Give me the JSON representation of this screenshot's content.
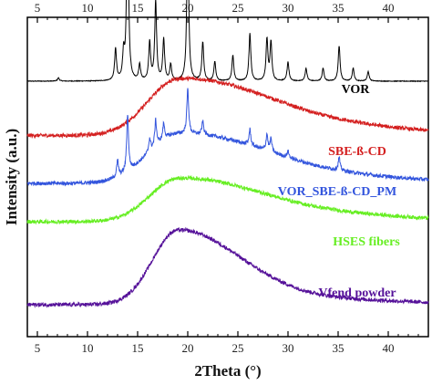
{
  "chart_data": {
    "type": "line",
    "title": "",
    "xlabel": "2Theta (°)",
    "ylabel": "Intensity (a.u.)",
    "xlim": [
      4,
      44
    ],
    "x_ticks": [
      5,
      10,
      15,
      20,
      25,
      30,
      35,
      40
    ],
    "x_ticks_top": [
      5,
      10,
      15,
      20,
      25,
      30,
      35,
      40
    ],
    "y_tick_labels": false,
    "grid": false,
    "legend": "labels placed beside each trace (right side)",
    "series": [
      {
        "name": "VOR",
        "color": "#000000",
        "baseline": 0.8,
        "peaks": [
          [
            7.1,
            0.01
          ],
          [
            12.8,
            0.1
          ],
          [
            13.6,
            0.08
          ],
          [
            14.0,
            0.58
          ],
          [
            15.2,
            0.05
          ],
          [
            16.2,
            0.12
          ],
          [
            16.8,
            0.25
          ],
          [
            17.6,
            0.13
          ],
          [
            18.3,
            0.05
          ],
          [
            20.0,
            0.48
          ],
          [
            21.5,
            0.12
          ],
          [
            22.7,
            0.06
          ],
          [
            24.5,
            0.08
          ],
          [
            26.2,
            0.15
          ],
          [
            27.9,
            0.13
          ],
          [
            28.3,
            0.12
          ],
          [
            30.0,
            0.06
          ],
          [
            31.8,
            0.04
          ],
          [
            33.5,
            0.04
          ],
          [
            35.1,
            0.11
          ],
          [
            36.5,
            0.04
          ],
          [
            38.0,
            0.03
          ]
        ],
        "halo": []
      },
      {
        "name": "SBE-ß-CD",
        "color": "#d42020",
        "baseline": 0.63,
        "peaks": [],
        "halo": [
          [
            19.0,
            0.17,
            3.0,
            7.5
          ],
          [
            30.0,
            0.04,
            6.0,
            10.0
          ]
        ]
      },
      {
        "name": "VOR_SBE-ß-CD_PM",
        "color": "#3355dd",
        "baseline": 0.48,
        "peaks": [
          [
            13.0,
            0.05
          ],
          [
            14.0,
            0.18
          ],
          [
            16.2,
            0.04
          ],
          [
            16.8,
            0.08
          ],
          [
            17.6,
            0.05
          ],
          [
            20.0,
            0.14
          ],
          [
            21.5,
            0.04
          ],
          [
            26.2,
            0.05
          ],
          [
            27.9,
            0.05
          ],
          [
            28.3,
            0.04
          ],
          [
            30.0,
            0.02
          ],
          [
            35.1,
            0.04
          ]
        ],
        "halo": [
          [
            19.0,
            0.15,
            3.0,
            7.5
          ],
          [
            30.0,
            0.03,
            6.0,
            10.0
          ]
        ]
      },
      {
        "name": "HSES fibers",
        "color": "#66ee22",
        "baseline": 0.36,
        "peaks": [],
        "halo": [
          [
            19.0,
            0.13,
            2.8,
            7.0
          ],
          [
            30.0,
            0.03,
            6.0,
            10.0
          ]
        ]
      },
      {
        "name": "Vfend powder",
        "color": "#551199",
        "baseline": 0.1,
        "peaks": [],
        "halo": [
          [
            19.0,
            0.23,
            2.5,
            6.0
          ],
          [
            30.0,
            0.02,
            6.0,
            10.0
          ]
        ]
      }
    ]
  }
}
